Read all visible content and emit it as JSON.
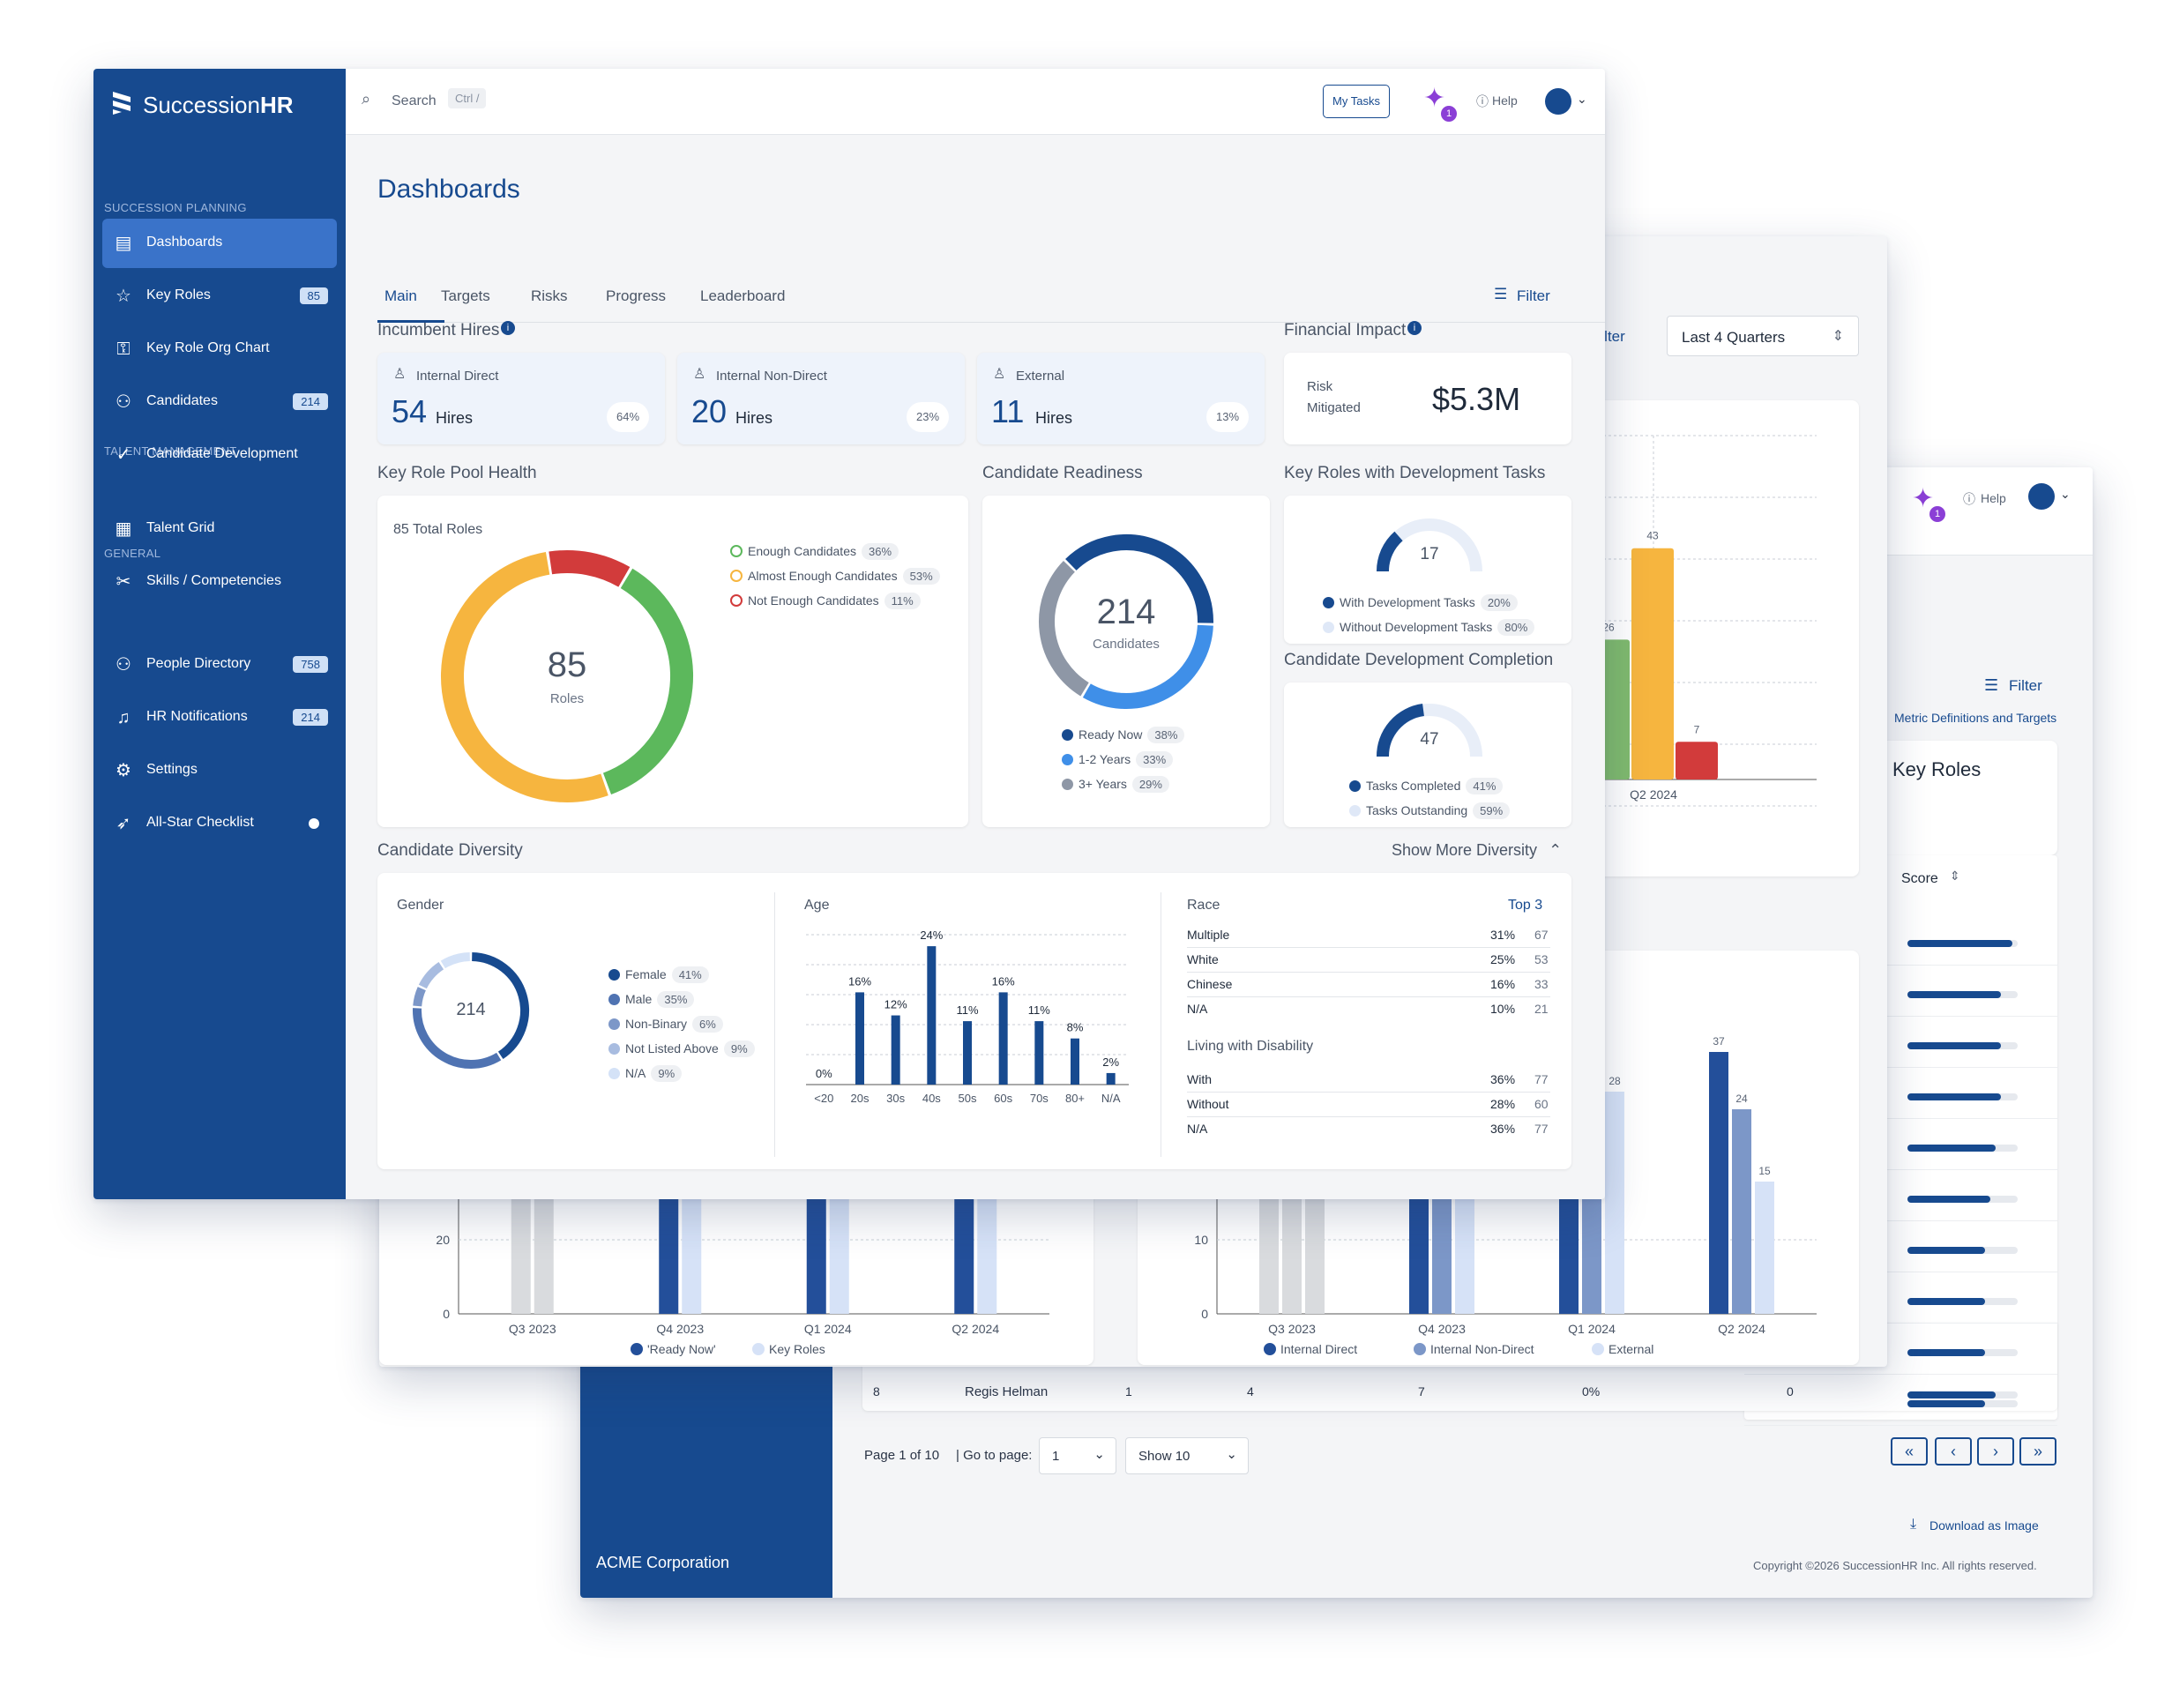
{
  "app": {
    "brand_prefix": "Succession",
    "brand_suffix": "HR",
    "company": "ACME Corporation"
  },
  "topbar": {
    "search_label": "Search",
    "search_shortcut": "Ctrl /",
    "my_tasks": "My Tasks",
    "notif_count": "1",
    "help": "Help"
  },
  "sidebar": {
    "sections": [
      "SUCCESSION PLANNING",
      "TALENT MANAGEMENT",
      "GENERAL"
    ],
    "items": [
      {
        "label": "Dashboards",
        "badge": "",
        "icon": "dashboard-icon"
      },
      {
        "label": "Key Roles",
        "badge": "85",
        "icon": "star-icon"
      },
      {
        "label": "Key Role Org Chart",
        "badge": "",
        "icon": "org-chart-icon"
      },
      {
        "label": "Candidates",
        "badge": "214",
        "icon": "candidates-icon"
      },
      {
        "label": "Candidate Development",
        "badge": "",
        "icon": "check-circle-icon"
      },
      {
        "label": "Talent Grid",
        "badge": "",
        "icon": "grid-icon"
      },
      {
        "label": "Skills / Competencies",
        "badge": "",
        "icon": "tools-icon"
      },
      {
        "label": "People Directory",
        "badge": "758",
        "icon": "people-icon"
      },
      {
        "label": "HR Notifications",
        "badge": "214",
        "icon": "bell-icon"
      },
      {
        "label": "Settings",
        "badge": "",
        "icon": "gear-icon"
      },
      {
        "label": "All-Star Checklist",
        "badge": "",
        "icon": "rocket-icon"
      }
    ]
  },
  "page": {
    "title": "Dashboards",
    "tabs": [
      "Main",
      "Targets",
      "Risks",
      "Progress",
      "Leaderboard"
    ],
    "filter": "Filter"
  },
  "incumbent": {
    "title": "Incumbent Hires",
    "cards": [
      {
        "label": "Internal Direct",
        "value": "54",
        "unit": "Hires",
        "pct": "64%"
      },
      {
        "label": "Internal Non-Direct",
        "value": "20",
        "unit": "Hires",
        "pct": "23%"
      },
      {
        "label": "External",
        "value": "11",
        "unit": "Hires",
        "pct": "13%"
      }
    ]
  },
  "financial": {
    "title": "Financial Impact",
    "label1": "Risk",
    "label2": "Mitigated",
    "value": "$5.3M"
  },
  "pool_health": {
    "title": "Key Role Pool Health",
    "total": "85 Total Roles",
    "center_value": "85",
    "center_label": "Roles",
    "segments": [
      {
        "label": "Enough Candidates",
        "pct": "36%",
        "value": 36,
        "color": "#5cb85c"
      },
      {
        "label": "Almost Enough Candidates",
        "pct": "53%",
        "value": 53,
        "color": "#f6b53f"
      },
      {
        "label": "Not Enough Candidates",
        "pct": "11%",
        "value": 11,
        "color": "#d23b3b"
      }
    ]
  },
  "readiness": {
    "title": "Candidate Readiness",
    "center_value": "214",
    "center_label": "Candidates",
    "segments": [
      {
        "label": "Ready Now",
        "pct": "38%",
        "value": 38,
        "color": "#174a8f"
      },
      {
        "label": "1-2 Years",
        "pct": "33%",
        "value": 33,
        "color": "#3f8fe8"
      },
      {
        "label": "3+ Years",
        "pct": "29%",
        "value": 29,
        "color": "#8e97a6"
      }
    ]
  },
  "dev_tasks": {
    "title": "Key Roles with Development Tasks",
    "value": "17",
    "legend": [
      {
        "label": "With Development Tasks",
        "pct": "20%"
      },
      {
        "label": "Without Development Tasks",
        "pct": "80%"
      }
    ]
  },
  "dev_completion": {
    "title": "Candidate Development Completion",
    "value": "47",
    "legend": [
      {
        "label": "Tasks Completed",
        "pct": "41%"
      },
      {
        "label": "Tasks Outstanding",
        "pct": "59%"
      }
    ]
  },
  "diversity": {
    "title": "Candidate Diversity",
    "show_more": "Show More Diversity",
    "gender": {
      "title": "Gender",
      "center": "214",
      "items": [
        {
          "label": "Female",
          "pct": "41%",
          "value": 41,
          "color": "#174a8f"
        },
        {
          "label": "Male",
          "pct": "35%",
          "value": 35,
          "color": "#4f73b2"
        },
        {
          "label": "Non-Binary",
          "pct": "6%",
          "value": 6,
          "color": "#7c97c8"
        },
        {
          "label": "Not Listed Above",
          "pct": "9%",
          "value": 9,
          "color": "#a8bce0"
        },
        {
          "label": "N/A",
          "pct": "9%",
          "value": 9,
          "color": "#d4e2f7"
        }
      ]
    },
    "age": {
      "title": "Age",
      "chart_data": {
        "type": "bar",
        "categories": [
          "<20",
          "20s",
          "30s",
          "40s",
          "50s",
          "60s",
          "70s",
          "80+",
          "N/A"
        ],
        "values": [
          0,
          16,
          12,
          24,
          11,
          16,
          11,
          8,
          2
        ],
        "labels": [
          "0%",
          "16%",
          "12%",
          "24%",
          "11%",
          "16%",
          "11%",
          "8%",
          "2%"
        ],
        "ylim": [
          0,
          26
        ]
      }
    },
    "race": {
      "title": "Race",
      "top": "Top 3",
      "rows": [
        {
          "label": "Multiple",
          "pct": "31%",
          "count": "67"
        },
        {
          "label": "White",
          "pct": "25%",
          "count": "53"
        },
        {
          "label": "Chinese",
          "pct": "16%",
          "count": "33"
        },
        {
          "label": "N/A",
          "pct": "10%",
          "count": "21"
        }
      ]
    },
    "disability": {
      "title": "Living with Disability",
      "rows": [
        {
          "label": "With",
          "pct": "36%",
          "count": "77"
        },
        {
          "label": "Without",
          "pct": "28%",
          "count": "60"
        },
        {
          "label": "N/A",
          "pct": "36%",
          "count": "77"
        }
      ]
    }
  },
  "back_window": {
    "period_select": "Last 4 Quarters",
    "filter": "Filter",
    "top_chart": {
      "chart_data": {
        "type": "bar",
        "categories": [
          "Q2 2024"
        ],
        "series": [
          {
            "values": [
              26
            ]
          },
          {
            "values": [
              43
            ]
          },
          {
            "values": [
              7
            ]
          }
        ],
        "labels": [
          "26",
          "43",
          "7"
        ]
      }
    },
    "left_chart": {
      "chart_data": {
        "type": "bar",
        "categories": [
          "Q3 2023",
          "Q4 2023",
          "Q1 2024",
          "Q2 2024"
        ],
        "series": [
          {
            "name": "'Ready Now'"
          },
          {
            "name": "Key Roles"
          }
        ],
        "y_tick": "20",
        "y_zero": "0"
      }
    },
    "right_chart": {
      "chart_data": {
        "type": "bar",
        "categories": [
          "Q3 2023",
          "Q4 2023",
          "Q1 2024",
          "Q2 2024"
        ],
        "series": [
          {
            "name": "Internal Direct"
          },
          {
            "name": "Internal Non-Direct"
          },
          {
            "name": "External"
          }
        ],
        "labels": [
          "28",
          "37",
          "24",
          "15"
        ],
        "y_tick": "10",
        "y_zero": "0"
      }
    }
  },
  "third_window": {
    "help": "Help",
    "notif_count": "1",
    "filter": "Filter",
    "metric_link": "Metric Definitions and Targets",
    "card_title": "Key Roles",
    "score_header": "Score",
    "score_values": [
      0.95,
      0.85,
      0.85,
      0.85,
      0.8,
      0.75,
      0.7,
      0.7,
      0.7,
      0.7
    ],
    "table_row": {
      "rank": "8",
      "name": "Regis Helman",
      "c1": "1",
      "c2": "4",
      "c3": "7",
      "c4": "0%",
      "c5": "0"
    },
    "pagination": {
      "page_text": "Page 1 of 10",
      "goto": "| Go to page:",
      "page_value": "1",
      "show": "Show 10"
    },
    "download": "Download as Image",
    "copyright": "Copyright ©2026 SuccessionHR Inc. All rights reserved."
  }
}
